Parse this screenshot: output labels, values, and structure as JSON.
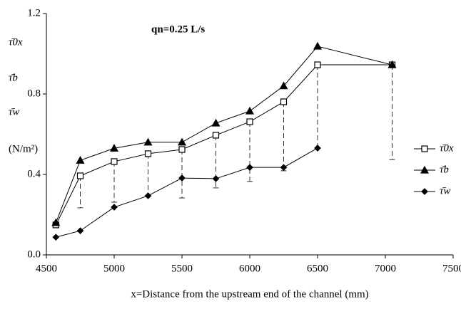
{
  "chart_data": {
    "type": "line",
    "annotation": "qn=0.25 L/s",
    "y_label": [
      "τ̄0x",
      "τ̄b",
      "τ̄w",
      "(N/m²)"
    ],
    "x_label": "x=Distance from the upstream end of the channel (mm)",
    "x": [
      4570,
      4750,
      5000,
      5250,
      5500,
      5750,
      6000,
      6250,
      6500,
      7050
    ],
    "series": [
      {
        "name": "τ̄0x",
        "color": "#000000",
        "marker": "square",
        "values": [
          0.149,
          0.393,
          0.464,
          0.503,
          0.524,
          0.595,
          0.662,
          0.761,
          0.945,
          0.945
        ],
        "lower": [
          null,
          0.234,
          0.262,
          0.294,
          0.283,
          0.333,
          0.365,
          0.418,
          0.531,
          0.474
        ]
      },
      {
        "name": "τ̄b",
        "color": "#000000",
        "marker": "triangle",
        "values": [
          0.16,
          0.47,
          0.53,
          0.56,
          0.56,
          0.655,
          0.715,
          0.84,
          1.037,
          0.945
        ]
      },
      {
        "name": "τ̄w",
        "color": "#000000",
        "marker": "diamond",
        "values": [
          0.088,
          0.12,
          0.237,
          0.294,
          0.382,
          0.379,
          0.435,
          0.435,
          0.531,
          null
        ]
      }
    ],
    "xlim": [
      4500,
      7500
    ],
    "xticks": [
      4500,
      5000,
      5500,
      6000,
      6500,
      7000,
      7500
    ],
    "ylim": [
      0,
      1.2
    ],
    "yticks": [
      {
        "value": 0,
        "label": "0.0"
      },
      {
        "value": 0.4,
        "label": "0.4"
      },
      {
        "value": 0.8,
        "label": "0.8"
      },
      {
        "value": 1.2,
        "label": "1.2"
      }
    ],
    "legend": "right"
  }
}
